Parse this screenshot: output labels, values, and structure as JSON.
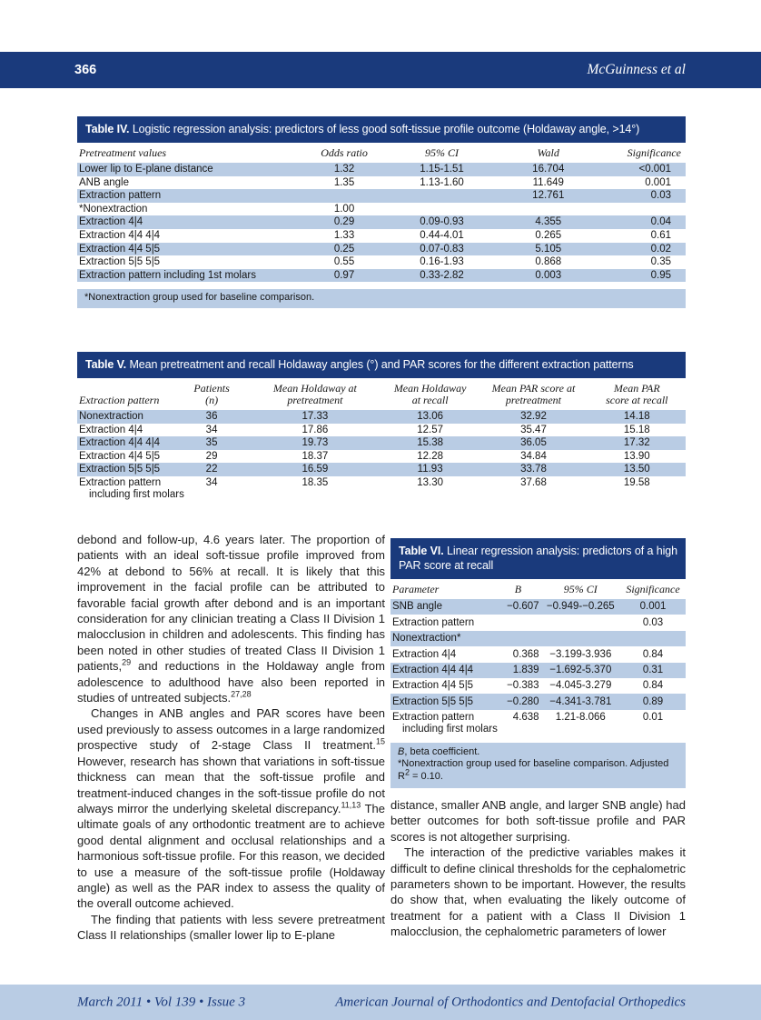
{
  "page": {
    "number": "366",
    "running_head": "McGuinness et al"
  },
  "colors": {
    "navy": "#1a3a7c",
    "row_shade": "#b9cce4"
  },
  "table4": {
    "label": "Table IV.",
    "title": "Logistic regression analysis: predictors of less good soft-tissue profile outcome (Holdaway angle, >14°)",
    "columns": [
      "Pretreatment values",
      "Odds ratio",
      "95% CI",
      "Wald",
      "Significance"
    ],
    "rows": [
      [
        "Lower lip to E-plane distance",
        "1.32",
        "1.15-1.51",
        "16.704",
        "<0.001"
      ],
      [
        "ANB angle",
        "1.35",
        "1.13-1.60",
        "11.649",
        "0.001"
      ],
      [
        "Extraction pattern",
        "",
        "",
        "12.761",
        "0.03"
      ],
      [
        "*Nonextraction",
        "1.00",
        "",
        "",
        ""
      ],
      [
        "Extraction 4|4",
        "0.29",
        "0.09-0.93",
        "4.355",
        "0.04"
      ],
      [
        "Extraction 4|4 4|4",
        "1.33",
        "0.44-4.01",
        "0.265",
        "0.61"
      ],
      [
        "Extraction 4|4 5|5",
        "0.25",
        "0.07-0.83",
        "5.105",
        "0.02"
      ],
      [
        "Extraction 5|5 5|5",
        "0.55",
        "0.16-1.93",
        "0.868",
        "0.35"
      ],
      [
        "Extraction pattern including 1st molars",
        "0.97",
        "0.33-2.82",
        "0.003",
        "0.95"
      ]
    ],
    "footnote": "*Nonextraction group used for baseline comparison."
  },
  "table5": {
    "label": "Table V.",
    "title": "Mean pretreatment and recall Holdaway angles (°) and PAR scores for the different extraction patterns",
    "columns": [
      "Extraction pattern",
      "Patients\n(n)",
      "Mean Holdaway at\npretreatment",
      "Mean Holdaway\nat recall",
      "Mean PAR score at\npretreatment",
      "Mean PAR\nscore at recall"
    ],
    "rows": [
      [
        "Nonextraction",
        "36",
        "17.33",
        "13.06",
        "32.92",
        "14.18"
      ],
      [
        "Extraction 4|4",
        "34",
        "17.86",
        "12.57",
        "35.47",
        "15.18"
      ],
      [
        "Extraction 4|4 4|4",
        "35",
        "19.73",
        "15.38",
        "36.05",
        "17.32"
      ],
      [
        "Extraction 4|4 5|5",
        "29",
        "18.37",
        "12.28",
        "34.84",
        "13.90"
      ],
      [
        "Extraction 5|5 5|5",
        "22",
        "16.59",
        "11.93",
        "33.78",
        "13.50"
      ],
      [
        "Extraction pattern\nincluding first molars",
        "34",
        "18.35",
        "13.30",
        "37.68",
        "19.58"
      ]
    ]
  },
  "table6": {
    "label": "Table VI.",
    "title": "Linear regression analysis: predictors of a high PAR score at recall",
    "columns": [
      "Parameter",
      "B",
      "95% CI",
      "Significance"
    ],
    "rows": [
      [
        "SNB angle",
        "−0.607",
        "−0.949-−0.265",
        "0.001"
      ],
      [
        "Extraction pattern",
        "",
        "",
        "0.03"
      ],
      [
        "Nonextraction*",
        "",
        "",
        ""
      ],
      [
        "Extraction 4|4",
        "0.368",
        "−3.199-3.936",
        "0.84"
      ],
      [
        "Extraction 4|4 4|4",
        "1.839",
        "−1.692-5.370",
        "0.31"
      ],
      [
        "Extraction 4|4 5|5",
        "−0.383",
        "−4.045-3.279",
        "0.84"
      ],
      [
        "Extraction 5|5 5|5",
        "−0.280",
        "−4.341-3.781",
        "0.89"
      ],
      [
        "Extraction pattern\nincluding first molars",
        "4.638",
        "1.21-8.066",
        "0.01"
      ]
    ],
    "footnotes": [
      [
        {
          "t": "B",
          "i": true
        },
        {
          "t": ", beta coefficient."
        }
      ],
      [
        {
          "t": "*Nonextraction group used for baseline comparison. Adjusted R"
        },
        {
          "t": "2",
          "sup": true
        },
        {
          "t": " = 0.10."
        }
      ]
    ]
  },
  "body": {
    "left_paragraphs": [
      [
        {
          "t": "debond and follow-up, 4.6 years later. The proportion of patients with an ideal soft-tissue profile improved from 42% at debond to 56% at recall. It is likely that this improvement in the facial profile can be attributed to favorable facial growth after debond and is an important consideration for any clinician treating a Class II Division 1 malocclusion in children and adolescents. This finding has been noted in other studies of treated Class II Division 1 patients,"
        },
        {
          "t": "29",
          "sup": true
        },
        {
          "t": " and reductions in the Holdaway angle from adolescence to adulthood have also been reported in studies of untreated subjects."
        },
        {
          "t": "27,28",
          "sup": true
        }
      ],
      [
        {
          "t": "Changes in ANB angles and PAR scores have been used previously to assess outcomes in a large randomized prospective study of 2-stage Class II treatment."
        },
        {
          "t": "15",
          "sup": true
        },
        {
          "t": " However, research has shown that variations in soft-tissue thickness can mean that the soft-tissue profile and treatment-induced changes in the soft-tissue profile do not always mirror the underlying skeletal discrepancy."
        },
        {
          "t": "11,13",
          "sup": true
        },
        {
          "t": " The ultimate goals of any orthodontic treatment are to achieve good dental alignment and occlusal relationships and a harmonious soft-tissue profile. For this reason, we decided to use a measure of the soft-tissue profile (Holdaway angle) as well as the PAR index to assess the quality of the overall outcome achieved."
        }
      ],
      [
        {
          "t": "The finding that patients with less severe pretreatment Class II relationships (smaller lower lip to E-plane"
        }
      ]
    ],
    "right_paragraphs": [
      [
        {
          "t": "distance, smaller ANB angle, and larger SNB angle) had better outcomes for both soft-tissue profile and PAR scores is not altogether surprising."
        }
      ],
      [
        {
          "t": "The interaction of the predictive variables makes it difficult to define clinical thresholds for the cephalometric parameters shown to be important. However, the results do show that, when evaluating the likely outcome of treatment for a patient with a Class II Division 1 malocclusion, the cephalometric parameters of lower"
        }
      ]
    ]
  },
  "footer": {
    "issue": "March 2011 • Vol 139 • Issue 3",
    "journal": "American Journal of Orthodontics and Dentofacial Orthopedics"
  }
}
